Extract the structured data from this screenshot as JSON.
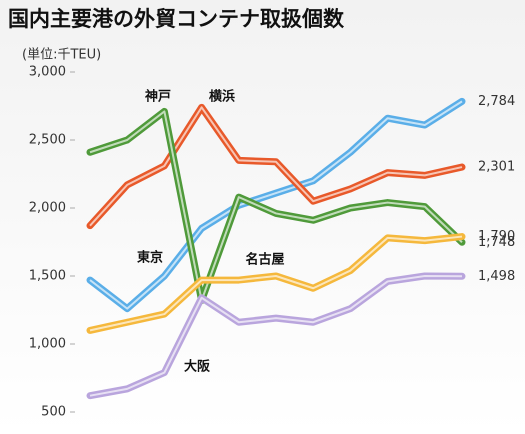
{
  "chart_data": {
    "type": "line",
    "title": "国内主要港の外貿コンテナ取扱個数",
    "y_label": "(単位:千TEU)",
    "categories": [
      null,
      null,
      null,
      null,
      null,
      null,
      null,
      null,
      null,
      null,
      null
    ],
    "ylim": [
      500,
      3000
    ],
    "yticks": [
      500,
      {
        "value": 1000,
        "label": "1,000"
      },
      {
        "value": 1500,
        "label": "1,500"
      },
      {
        "value": 2000,
        "label": "2,000"
      },
      {
        "value": 2500,
        "label": "2,500"
      },
      {
        "value": 3000,
        "label": "3,000"
      }
    ],
    "grid": false,
    "series": [
      {
        "name": "東京",
        "color": "#5aaee8",
        "values": [
          1470,
          1260,
          1500,
          1850,
          2020,
          2110,
          2200,
          2410,
          2660,
          2610,
          2784
        ],
        "value_labels": [
          null,
          null,
          null,
          null,
          null,
          null,
          null,
          null,
          null,
          null,
          "2,784"
        ]
      },
      {
        "name": "横浜",
        "color": "#e8592a",
        "values": [
          1870,
          2170,
          2310,
          2740,
          2350,
          2340,
          2050,
          2140,
          2260,
          2240,
          2301
        ],
        "value_labels": [
          null,
          null,
          null,
          null,
          null,
          null,
          null,
          null,
          null,
          null,
          "2,301"
        ]
      },
      {
        "name": "神戸",
        "color": "#4f9a3a",
        "values": [
          2410,
          2500,
          2710,
          1320,
          2080,
          1960,
          1910,
          2000,
          2040,
          2010,
          1748
        ],
        "value_labels": [
          null,
          null,
          null,
          null,
          null,
          null,
          null,
          null,
          null,
          null,
          "1,748"
        ]
      },
      {
        "name": "名古屋",
        "color": "#f5b83c",
        "values": [
          1100,
          1160,
          1220,
          1470,
          1470,
          1500,
          1410,
          1540,
          1780,
          1760,
          1790
        ],
        "value_labels": [
          null,
          null,
          null,
          null,
          null,
          null,
          null,
          null,
          null,
          null,
          "1,790"
        ]
      },
      {
        "name": "大阪",
        "color": "#b9a5dd",
        "values": [
          620,
          670,
          790,
          1340,
          1160,
          1190,
          1160,
          1260,
          1460,
          1500,
          1498
        ],
        "value_labels": [
          null,
          null,
          null,
          null,
          null,
          null,
          null,
          null,
          null,
          null,
          "1,498"
        ]
      }
    ]
  }
}
